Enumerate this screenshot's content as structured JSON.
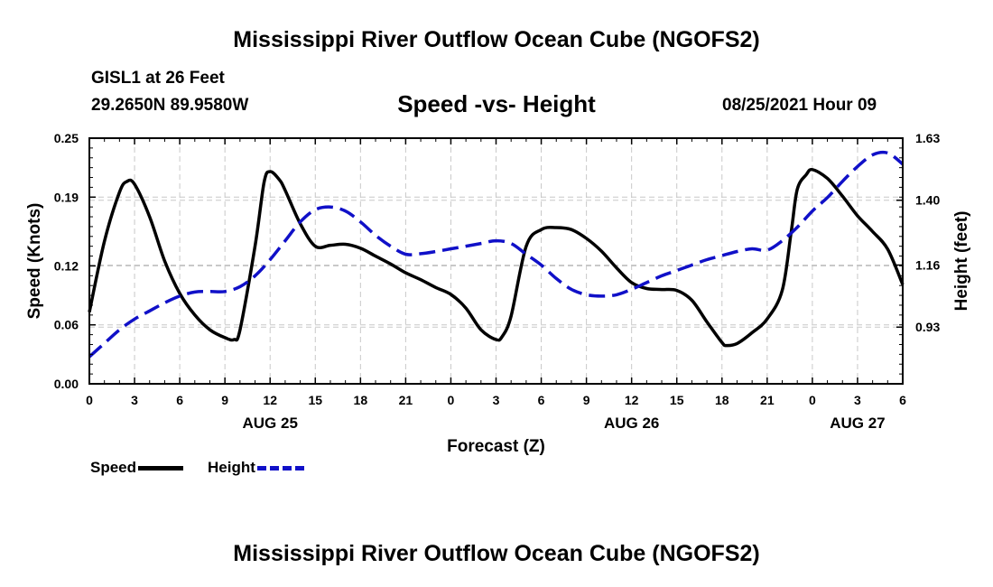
{
  "header": {
    "title_top": "Mississippi River Outflow Ocean Cube (NGOFS2)",
    "station": "GISL1 at 26 Feet",
    "coordinates": "29.2650N  89.9580W",
    "subtitle": "Speed -vs- Height",
    "datetime": "08/25/2021 Hour 09",
    "title_bottom": "Mississippi River Outflow Ocean Cube (NGOFS2)"
  },
  "colors": {
    "speed": "#000000",
    "height": "#1010c8",
    "grid": "#c8c8c8"
  },
  "chart_data": {
    "type": "line",
    "xlabel": "Forecast (Z)",
    "ylabel_left": "Speed (Knots)",
    "ylabel_right": "Height (feet)",
    "x_range": [
      0,
      54
    ],
    "ylim_left": [
      0.0,
      0.25
    ],
    "ylim_right": [
      0.72,
      1.63
    ],
    "x_ticks": [
      0,
      3,
      6,
      9,
      12,
      15,
      18,
      21,
      24,
      27,
      30,
      33,
      36,
      39,
      42,
      45,
      48,
      51,
      54
    ],
    "x_tick_labels": [
      "0",
      "3",
      "6",
      "9",
      "12",
      "15",
      "18",
      "21",
      "0",
      "3",
      "6",
      "9",
      "12",
      "15",
      "18",
      "21",
      "0",
      "3",
      "6"
    ],
    "date_labels": [
      {
        "x": 12,
        "label": "AUG 25"
      },
      {
        "x": 36,
        "label": "AUG 26"
      },
      {
        "x": 51,
        "label": "AUG 27"
      }
    ],
    "y_left_ticks": [
      0.0,
      0.06,
      0.12,
      0.19,
      0.25
    ],
    "y_left_tick_labels": [
      "0.00",
      "0.06",
      "0.12",
      "0.19",
      "0.25"
    ],
    "y_right_ticks": [
      0.93,
      1.16,
      1.4,
      1.63
    ],
    "y_right_tick_labels": [
      "0.93",
      "1.16",
      "1.40",
      "1.63"
    ],
    "grid": true,
    "legend": "bottom-left",
    "series": [
      {
        "name": "Speed",
        "axis": "left",
        "style": "solid",
        "x": [
          0,
          1,
          2,
          2.5,
          3,
          4,
          5,
          6,
          7,
          8,
          9,
          9.6,
          10,
          11,
          11.6,
          12,
          12.6,
          13,
          14,
          15,
          16,
          17,
          18,
          19,
          20,
          21,
          22,
          23,
          24,
          25,
          26,
          27,
          27.4,
          28,
          29,
          30,
          31,
          32,
          33,
          34,
          35,
          36,
          37,
          38,
          39,
          40,
          41,
          42,
          42.3,
          43,
          44,
          45,
          46,
          46.6,
          47,
          47.6,
          48,
          49,
          50,
          51,
          52,
          53,
          54
        ],
        "y": [
          0.073,
          0.145,
          0.195,
          0.206,
          0.203,
          0.17,
          0.125,
          0.092,
          0.07,
          0.055,
          0.047,
          0.045,
          0.055,
          0.14,
          0.205,
          0.216,
          0.208,
          0.197,
          0.163,
          0.14,
          0.141,
          0.142,
          0.138,
          0.13,
          0.122,
          0.113,
          0.106,
          0.098,
          0.091,
          0.077,
          0.055,
          0.045,
          0.048,
          0.069,
          0.14,
          0.157,
          0.159,
          0.157,
          0.148,
          0.135,
          0.118,
          0.103,
          0.097,
          0.096,
          0.095,
          0.085,
          0.063,
          0.042,
          0.039,
          0.041,
          0.052,
          0.066,
          0.095,
          0.155,
          0.198,
          0.213,
          0.218,
          0.209,
          0.191,
          0.171,
          0.155,
          0.137,
          0.101
        ]
      },
      {
        "name": "Height",
        "axis": "right",
        "style": "dashed",
        "x": [
          0,
          1,
          2,
          3,
          4,
          5,
          6,
          7,
          8,
          9,
          10,
          11,
          12,
          13,
          14,
          15,
          16,
          17,
          18,
          19,
          20,
          21,
          22,
          23,
          24,
          25,
          26,
          27,
          28,
          29,
          30,
          31,
          32,
          33,
          34,
          35,
          36,
          37,
          38,
          39,
          40,
          41,
          42,
          43,
          44,
          45,
          46,
          47,
          48,
          49,
          50,
          51,
          52,
          53,
          54
        ],
        "y": [
          0.82,
          0.87,
          0.92,
          0.96,
          0.99,
          1.02,
          1.045,
          1.06,
          1.062,
          1.062,
          1.08,
          1.12,
          1.18,
          1.25,
          1.32,
          1.365,
          1.375,
          1.36,
          1.32,
          1.27,
          1.23,
          1.2,
          1.202,
          1.21,
          1.22,
          1.23,
          1.24,
          1.25,
          1.24,
          1.2,
          1.16,
          1.11,
          1.07,
          1.05,
          1.045,
          1.05,
          1.07,
          1.095,
          1.12,
          1.14,
          1.16,
          1.18,
          1.195,
          1.21,
          1.22,
          1.215,
          1.25,
          1.3,
          1.36,
          1.41,
          1.47,
          1.525,
          1.568,
          1.575,
          1.534
        ]
      }
    ]
  }
}
